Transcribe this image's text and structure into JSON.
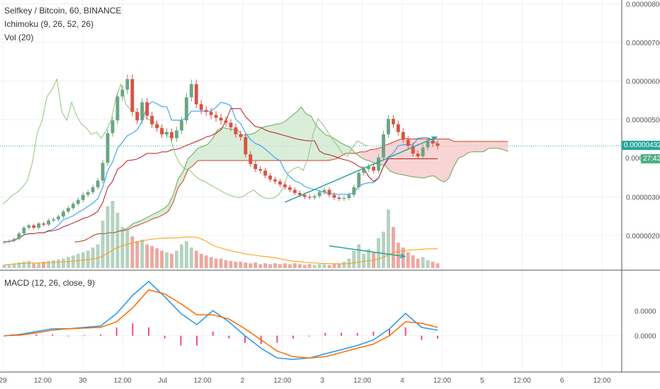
{
  "header": {
    "symbol_line": "Selfkey / Bitcoin, 60, BINANCE",
    "ichimoku_line": "Ichimoku (9, 26, 52, 26)",
    "vol_line": "Vol (20)"
  },
  "macd_panel": {
    "label": "MACD (12, 26, close, 9)"
  },
  "price_tags": {
    "last_price": "0.00000432",
    "countdown": "27:42",
    "partial_price": "0.000"
  },
  "colors": {
    "up": "#6ba583",
    "down": "#d75442",
    "cloud_bull": "#cfe8cf",
    "cloud_bear": "#f6c9c9",
    "last_price_tag": "#26a69a",
    "countdown_tag": "#4caf83",
    "macd_line": "#2196f3",
    "signal_line": "#ff6d00",
    "histogram": "#e91e63",
    "trendline": "#26a69a"
  },
  "chart_data": [
    {
      "type": "candlestick",
      "title": "Selfkey / Bitcoin, 60, BINANCE",
      "indicators": [
        "Ichimoku (9, 26, 52, 26)",
        "Vol (20)"
      ],
      "y_axis_ticks": [
        "0.00000800",
        "0.00000700",
        "0.00000600",
        "0.00000500",
        "0.00000300",
        "0.00000200"
      ],
      "x_axis_ticks": [
        "29",
        "12:00",
        "30",
        "12:00",
        "Jul",
        "12:00",
        "2",
        "12:00",
        "3",
        "12:00",
        "4",
        "12:00",
        "5",
        "12:00",
        "6",
        "12:00"
      ],
      "ylim": [
        1.1e-06,
        8.1e-06
      ],
      "last_price": 4.32e-06,
      "close_series": [
        1.83e-06,
        1.86e-06,
        1.91e-06,
        2.05e-06,
        2.2e-06,
        2.26e-06,
        2.2e-06,
        2.31e-06,
        2.28e-06,
        2.39e-06,
        2.42e-06,
        2.49e-06,
        2.62e-06,
        2.71e-06,
        2.82e-06,
        2.92e-06,
        3.05e-06,
        3.12e-06,
        3.25e-06,
        3.42e-06,
        3.88e-06,
        4.65e-06,
        4.98e-06,
        5.6e-06,
        5.78e-06,
        6.05e-06,
        5.2e-06,
        4.98e-06,
        5.45e-06,
        5.1e-06,
        4.88e-06,
        4.78e-06,
        4.62e-06,
        4.68e-06,
        4.52e-06,
        4.72e-06,
        4.98e-06,
        5.58e-06,
        5.92e-06,
        5.4e-06,
        5.25e-06,
        5.2e-06,
        5.12e-06,
        5.05e-06,
        4.98e-06,
        4.92e-06,
        4.8e-06,
        4.62e-06,
        4.55e-06,
        4.1e-06,
        3.85e-06,
        3.72e-06,
        3.68e-06,
        3.55e-06,
        3.45e-06,
        3.4e-06,
        3.32e-06,
        3.25e-06,
        3.18e-06,
        3.1e-06,
        3.05e-06,
        3e-06,
        2.98e-06,
        3.02e-06,
        3.12e-06,
        3.18e-06,
        3.05e-06,
        2.98e-06,
        2.95e-06,
        2.97e-06,
        3.05e-06,
        3.25e-06,
        3.62e-06,
        3.72e-06,
        3.78e-06,
        3.68e-06,
        4.02e-06,
        4.62e-06,
        5.02e-06,
        4.88e-06,
        4.68e-06,
        4.48e-06,
        4.32e-06,
        4.12e-06,
        4.05e-06,
        4.28e-06,
        4.45e-06,
        4.38e-06,
        4.32e-06
      ],
      "volume_series": [
        4,
        5,
        6,
        7,
        8,
        9,
        6,
        7,
        8,
        9,
        10,
        11,
        12,
        14,
        16,
        18,
        20,
        22,
        26,
        30,
        60,
        78,
        85,
        70,
        52,
        48,
        40,
        34,
        36,
        30,
        28,
        25,
        22,
        20,
        18,
        22,
        30,
        34,
        26,
        22,
        18,
        16,
        14,
        12,
        12,
        10,
        9,
        8,
        8,
        7,
        6,
        7,
        5,
        6,
        5,
        6,
        5,
        6,
        5,
        6,
        5,
        4,
        5,
        4,
        5,
        5,
        4,
        5,
        6,
        8,
        12,
        22,
        30,
        18,
        24,
        20,
        38,
        46,
        74,
        52,
        32,
        26,
        20,
        16,
        12,
        14,
        10,
        8,
        6
      ],
      "trendlines": [
        {
          "from": {
            "bar": 57,
            "price": 2.86e-06
          },
          "to": {
            "bar": 82,
            "price": 4.55e-06
          }
        },
        {
          "from": {
            "bar": 66,
            "price": 1.55e-06
          },
          "to": {
            "bar": 77,
            "price": 1.22e-06
          },
          "pane": "volume"
        }
      ]
    },
    {
      "type": "line",
      "title": "MACD (12, 26, close, 9)",
      "y_axis_ticks": [
        "0.0000",
        "0.0000"
      ],
      "series": [
        {
          "name": "MACD",
          "values": [
            0.0,
            0.1,
            0.3,
            0.5,
            0.5,
            0.6,
            0.7,
            1.6,
            2.9,
            3.9,
            2.8,
            1.6,
            0.8,
            1.8,
            1.0,
            0.0,
            -0.9,
            -1.6,
            -1.7,
            -1.6,
            -1.3,
            -1.0,
            -0.7,
            -0.3,
            0.5,
            1.6,
            0.6,
            0.4
          ]
        },
        {
          "name": "Signal",
          "values": [
            0.0,
            0.05,
            0.2,
            0.4,
            0.5,
            0.55,
            0.6,
            1.0,
            2.0,
            3.3,
            3.0,
            2.3,
            1.5,
            1.5,
            1.2,
            0.5,
            -0.3,
            -1.1,
            -1.5,
            -1.6,
            -1.5,
            -1.2,
            -0.9,
            -0.6,
            0.0,
            1.0,
            0.9,
            0.6
          ]
        }
      ],
      "histogram": [
        0.0,
        0.05,
        0.1,
        0.1,
        0.0,
        0.05,
        0.1,
        0.6,
        0.9,
        0.6,
        -0.2,
        -0.7,
        -0.7,
        0.3,
        -0.2,
        -0.5,
        -0.6,
        -0.5,
        -0.2,
        0.0,
        0.2,
        0.2,
        0.2,
        0.3,
        0.5,
        0.6,
        -0.3,
        -0.2
      ]
    }
  ]
}
